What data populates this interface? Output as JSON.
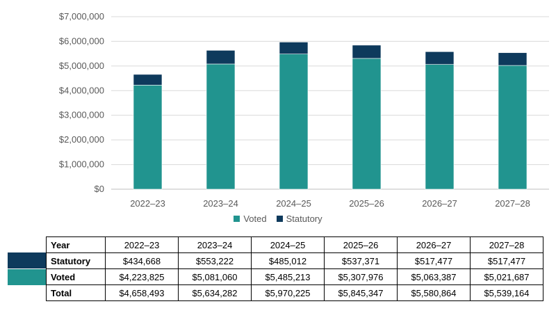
{
  "colors": {
    "voted": "#21948F",
    "statutory": "#0E3A5C",
    "grid": "#D9D9D9"
  },
  "chart_data": {
    "type": "bar",
    "stacked": true,
    "categories": [
      "2022–23",
      "2023–24",
      "2024–25",
      "2025–26",
      "2026–27",
      "2027–28"
    ],
    "series": [
      {
        "name": "Voted",
        "values": [
          4223825,
          5081060,
          5485213,
          5307976,
          5063387,
          5021687
        ]
      },
      {
        "name": "Statutory",
        "values": [
          434668,
          553222,
          485012,
          537371,
          517477,
          517477
        ]
      }
    ],
    "yticks": [
      "$0",
      "$1,000,000",
      "$2,000,000",
      "$3,000,000",
      "$4,000,000",
      "$5,000,000",
      "$6,000,000",
      "$7,000,000"
    ],
    "ylim": [
      0,
      7000000
    ],
    "grid": true,
    "legend": "bottom"
  },
  "legend": {
    "voted": "Voted",
    "statutory": "Statutory"
  },
  "table": {
    "header": [
      "Year",
      "2022–23",
      "2023–24",
      "2024–25",
      "2025–26",
      "2026–27",
      "2027–28"
    ],
    "rows": [
      [
        "Statutory",
        "$434,668",
        "$553,222",
        "$485,012",
        "$537,371",
        "$517,477",
        "$517,477"
      ],
      [
        "Voted",
        "$4,223,825",
        "$5,081,060",
        "$5,485,213",
        "$5,307,976",
        "$5,063,387",
        "$5,021,687"
      ],
      [
        "Total",
        "$4,658,493",
        "$5,634,282",
        "$5,970,225",
        "$5,845,347",
        "$5,580,864",
        "$5,539,164"
      ]
    ]
  }
}
